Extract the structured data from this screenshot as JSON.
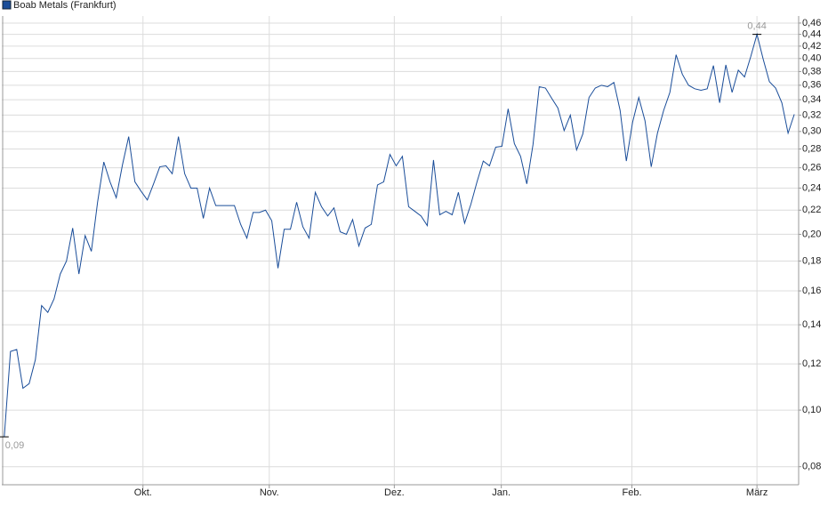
{
  "chart_data": {
    "type": "line",
    "log": true,
    "grid": true,
    "legend": "top-left",
    "xlim": [
      -0.4,
      127.7
    ],
    "xticks": [
      {
        "value": 22.3,
        "label": "Okt."
      },
      {
        "value": 42.6,
        "label": "Nov."
      },
      {
        "value": 62.7,
        "label": "Dez."
      },
      {
        "value": 79.9,
        "label": "Jan."
      },
      {
        "value": 100.9,
        "label": "Feb."
      },
      {
        "value": 121,
        "label": "März"
      }
    ],
    "ylim": [
      0.0745,
      0.473
    ],
    "yticks": [
      {
        "value": 0.08,
        "label": "0,08"
      },
      {
        "value": 0.1,
        "label": "0,10"
      },
      {
        "value": 0.12,
        "label": "0,12"
      },
      {
        "value": 0.14,
        "label": "0,14"
      },
      {
        "value": 0.16,
        "label": "0,16"
      },
      {
        "value": 0.18,
        "label": "0,18"
      },
      {
        "value": 0.2,
        "label": "0,20"
      },
      {
        "value": 0.22,
        "label": "0,22"
      },
      {
        "value": 0.24,
        "label": "0,24"
      },
      {
        "value": 0.26,
        "label": "0,26"
      },
      {
        "value": 0.28,
        "label": "0,28"
      },
      {
        "value": 0.3,
        "label": "0,30"
      },
      {
        "value": 0.32,
        "label": "0,32"
      },
      {
        "value": 0.34,
        "label": "0,34"
      },
      {
        "value": 0.36,
        "label": "0,36"
      },
      {
        "value": 0.38,
        "label": "0,38"
      },
      {
        "value": 0.4,
        "label": "0,40"
      },
      {
        "value": 0.42,
        "label": "0,42"
      },
      {
        "value": 0.44,
        "label": "0,44"
      },
      {
        "value": 0.46,
        "label": "0,46"
      }
    ],
    "series": [
      {
        "name": "Boab Metals (Frankfurt)",
        "color": "#1a4d99",
        "values": [
          0.09,
          0.126,
          0.127,
          0.109,
          0.111,
          0.122,
          0.151,
          0.147,
          0.155,
          0.171,
          0.18,
          0.205,
          0.171,
          0.199,
          0.187,
          0.227,
          0.266,
          0.246,
          0.231,
          0.263,
          0.294,
          0.246,
          0.237,
          0.229,
          0.244,
          0.261,
          0.262,
          0.254,
          0.294,
          0.254,
          0.24,
          0.24,
          0.213,
          0.24,
          0.224,
          0.224,
          0.224,
          0.224,
          0.208,
          0.197,
          0.218,
          0.218,
          0.22,
          0.211,
          0.175,
          0.204,
          0.204,
          0.227,
          0.206,
          0.197,
          0.236,
          0.223,
          0.215,
          0.222,
          0.202,
          0.2,
          0.212,
          0.191,
          0.205,
          0.208,
          0.243,
          0.246,
          0.274,
          0.262,
          0.272,
          0.223,
          0.219,
          0.215,
          0.207,
          0.268,
          0.216,
          0.219,
          0.216,
          0.236,
          0.209,
          0.225,
          0.246,
          0.267,
          0.262,
          0.282,
          0.283,
          0.328,
          0.286,
          0.272,
          0.244,
          0.285,
          0.358,
          0.356,
          0.342,
          0.329,
          0.301,
          0.32,
          0.279,
          0.297,
          0.343,
          0.356,
          0.36,
          0.358,
          0.364,
          0.326,
          0.267,
          0.311,
          0.343,
          0.313,
          0.261,
          0.298,
          0.326,
          0.35,
          0.406,
          0.376,
          0.36,
          0.355,
          0.353,
          0.355,
          0.389,
          0.336,
          0.39,
          0.35,
          0.382,
          0.372,
          0.403,
          0.44,
          0.399,
          0.365,
          0.356,
          0.336,
          0.298,
          0.321
        ],
        "value_labels": [
          "0,09",
          null,
          null,
          null,
          null,
          null,
          null,
          null,
          null,
          null,
          null,
          null,
          null,
          null,
          null,
          null,
          null,
          null,
          null,
          null,
          null,
          null,
          null,
          null,
          null,
          null,
          null,
          null,
          null,
          null,
          null,
          null,
          null,
          null,
          null,
          null,
          null,
          null,
          null,
          null,
          null,
          null,
          null,
          null,
          null,
          null,
          null,
          null,
          null,
          null,
          null,
          null,
          null,
          null,
          null,
          null,
          null,
          null,
          null,
          null,
          null,
          null,
          null,
          null,
          null,
          null,
          null,
          null,
          null,
          null,
          null,
          null,
          null,
          null,
          null,
          null,
          null,
          null,
          null,
          null,
          null,
          null,
          null,
          null,
          null,
          null,
          null,
          null,
          null,
          null,
          null,
          null,
          null,
          null,
          null,
          null,
          null,
          null,
          null,
          null,
          null,
          null,
          null,
          null,
          null,
          null,
          null,
          null,
          null,
          null,
          null,
          null,
          null,
          null,
          null,
          null,
          null,
          null,
          null,
          null,
          null,
          "0,44",
          null,
          null,
          null,
          null,
          null,
          null
        ]
      }
    ]
  }
}
